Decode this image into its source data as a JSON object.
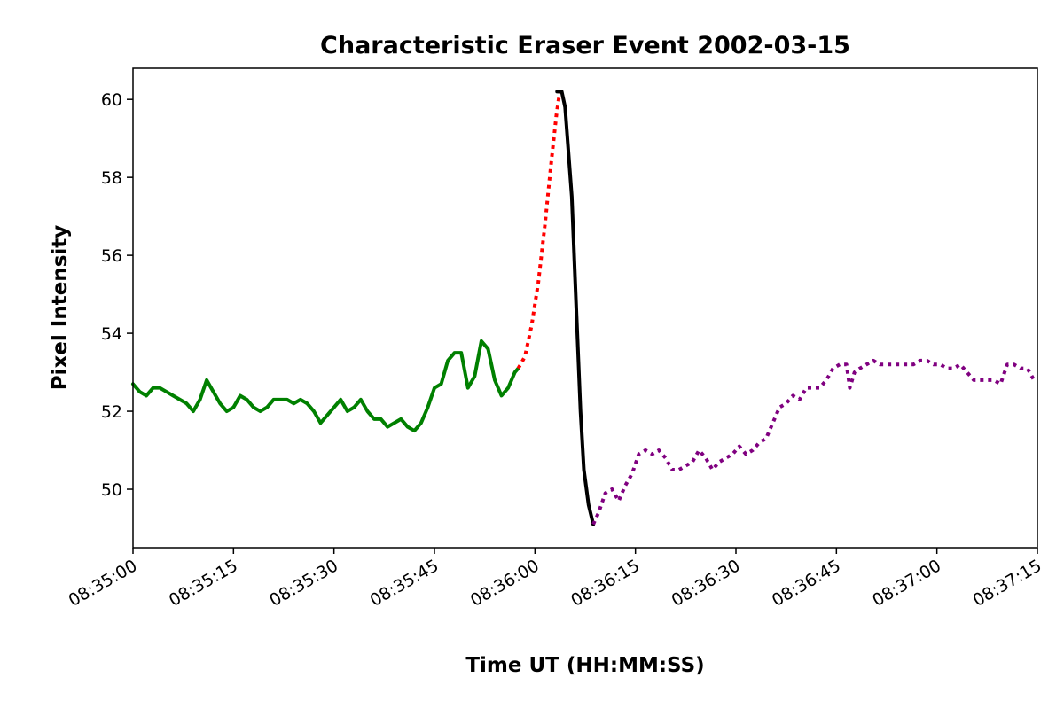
{
  "chart_data": {
    "type": "line",
    "title": "Characteristic Eraser Event 2002-03-15",
    "xlabel": "Time UT (HH:MM:SS)",
    "ylabel": "Pixel Intensity",
    "x_unit": "time of day (UT)",
    "xlim": [
      "08:35:00",
      "08:37:15"
    ],
    "ylim": [
      48.5,
      60.8
    ],
    "x_ticks": [
      "08:35:00",
      "08:35:15",
      "08:35:30",
      "08:35:45",
      "08:36:00",
      "08:36:15",
      "08:36:30",
      "08:36:45",
      "08:37:00",
      "08:37:15"
    ],
    "y_ticks": [
      50,
      52,
      54,
      56,
      58,
      60
    ],
    "grid": false,
    "series": [
      {
        "color": "#008000",
        "style": "solid",
        "points": [
          [
            "08:35:00",
            52.7
          ],
          [
            "08:35:01",
            52.5
          ],
          [
            "08:35:02",
            52.4
          ],
          [
            "08:35:03",
            52.6
          ],
          [
            "08:35:04",
            52.6
          ],
          [
            "08:35:05",
            52.5
          ],
          [
            "08:35:06",
            52.4
          ],
          [
            "08:35:07",
            52.3
          ],
          [
            "08:35:08",
            52.2
          ],
          [
            "08:35:09",
            52.0
          ],
          [
            "08:35:10",
            52.3
          ],
          [
            "08:35:11",
            52.8
          ],
          [
            "08:35:12",
            52.5
          ],
          [
            "08:35:13",
            52.2
          ],
          [
            "08:35:14",
            52.0
          ],
          [
            "08:35:15",
            52.1
          ],
          [
            "08:35:16",
            52.4
          ],
          [
            "08:35:17",
            52.3
          ],
          [
            "08:35:18",
            52.1
          ],
          [
            "08:35:19",
            52.0
          ],
          [
            "08:35:20",
            52.1
          ],
          [
            "08:35:21",
            52.3
          ],
          [
            "08:35:22",
            52.3
          ],
          [
            "08:35:23",
            52.3
          ],
          [
            "08:35:24",
            52.2
          ],
          [
            "08:35:25",
            52.3
          ],
          [
            "08:35:26",
            52.2
          ],
          [
            "08:35:27",
            52.0
          ],
          [
            "08:35:28",
            51.7
          ],
          [
            "08:35:29",
            51.9
          ],
          [
            "08:35:30",
            52.1
          ],
          [
            "08:35:31",
            52.3
          ],
          [
            "08:35:32",
            52.0
          ],
          [
            "08:35:33",
            52.1
          ],
          [
            "08:35:34",
            52.3
          ],
          [
            "08:35:35",
            52.0
          ],
          [
            "08:35:36",
            51.8
          ],
          [
            "08:35:37",
            51.8
          ],
          [
            "08:35:38",
            51.6
          ],
          [
            "08:35:39",
            51.7
          ],
          [
            "08:35:40",
            51.8
          ],
          [
            "08:35:41",
            51.6
          ],
          [
            "08:35:42",
            51.5
          ],
          [
            "08:35:43",
            51.7
          ],
          [
            "08:35:44",
            52.1
          ],
          [
            "08:35:45",
            52.6
          ],
          [
            "08:35:46",
            52.7
          ],
          [
            "08:35:47",
            53.3
          ],
          [
            "08:35:48",
            53.5
          ],
          [
            "08:35:49",
            53.5
          ],
          [
            "08:35:50",
            52.6
          ],
          [
            "08:35:51",
            52.9
          ],
          [
            "08:35:52",
            53.8
          ],
          [
            "08:35:53",
            53.6
          ],
          [
            "08:35:54",
            52.8
          ],
          [
            "08:35:55",
            52.4
          ],
          [
            "08:35:56",
            52.6
          ],
          [
            "08:35:57",
            53.0
          ],
          [
            "08:35:57.5",
            53.1
          ]
        ]
      },
      {
        "color": "#ff0000",
        "style": "dotted",
        "points": [
          [
            "08:35:57.5",
            53.1
          ],
          [
            "08:35:58.5",
            53.4
          ],
          [
            "08:35:59.5",
            54.2
          ],
          [
            "08:36:00.5",
            55.3
          ],
          [
            "08:36:01.5",
            56.8
          ],
          [
            "08:36:02.5",
            58.5
          ],
          [
            "08:36:03.2",
            59.6
          ],
          [
            "08:36:03.7",
            60.2
          ]
        ]
      },
      {
        "color": "#000000",
        "style": "solid",
        "points": [
          [
            "08:36:03.3",
            60.2
          ],
          [
            "08:36:04",
            60.2
          ],
          [
            "08:36:04.5",
            59.8
          ],
          [
            "08:36:05.5",
            57.5
          ],
          [
            "08:36:06.2",
            54.5
          ],
          [
            "08:36:06.8",
            52.0
          ],
          [
            "08:36:07.3",
            50.5
          ],
          [
            "08:36:08",
            49.6
          ],
          [
            "08:36:08.7",
            49.1
          ]
        ]
      },
      {
        "color": "#800080",
        "style": "dotted",
        "points": [
          [
            "08:36:08.7",
            49.1
          ],
          [
            "08:36:09.5",
            49.4
          ],
          [
            "08:36:10.5",
            49.9
          ],
          [
            "08:36:11.5",
            50.0
          ],
          [
            "08:36:12.5",
            49.7
          ],
          [
            "08:36:13.5",
            50.1
          ],
          [
            "08:36:14.5",
            50.4
          ],
          [
            "08:36:15.5",
            50.9
          ],
          [
            "08:36:16.5",
            51.0
          ],
          [
            "08:36:17.5",
            50.9
          ],
          [
            "08:36:18.5",
            51.0
          ],
          [
            "08:36:19.5",
            50.8
          ],
          [
            "08:36:20.5",
            50.5
          ],
          [
            "08:36:21.5",
            50.5
          ],
          [
            "08:36:22.5",
            50.6
          ],
          [
            "08:36:23.5",
            50.7
          ],
          [
            "08:36:24.5",
            51.0
          ],
          [
            "08:36:25.5",
            50.8
          ],
          [
            "08:36:26.5",
            50.5
          ],
          [
            "08:36:27.5",
            50.7
          ],
          [
            "08:36:28.5",
            50.8
          ],
          [
            "08:36:29.5",
            50.9
          ],
          [
            "08:36:30.5",
            51.1
          ],
          [
            "08:36:31.5",
            50.9
          ],
          [
            "08:36:32.5",
            51.0
          ],
          [
            "08:36:33.5",
            51.2
          ],
          [
            "08:36:34.5",
            51.3
          ],
          [
            "08:36:35.5",
            51.7
          ],
          [
            "08:36:36.5",
            52.1
          ],
          [
            "08:36:37.5",
            52.2
          ],
          [
            "08:36:38.5",
            52.4
          ],
          [
            "08:36:39.5",
            52.3
          ],
          [
            "08:36:40.5",
            52.6
          ],
          [
            "08:36:41.5",
            52.6
          ],
          [
            "08:36:42.5",
            52.6
          ],
          [
            "08:36:43.5",
            52.8
          ],
          [
            "08:36:44.5",
            53.1
          ],
          [
            "08:36:45.5",
            53.2
          ],
          [
            "08:36:46.5",
            53.2
          ],
          [
            "08:36:47",
            52.6
          ],
          [
            "08:36:47.7",
            53.0
          ],
          [
            "08:36:48.5",
            53.1
          ],
          [
            "08:36:49.5",
            53.2
          ],
          [
            "08:36:50.5",
            53.3
          ],
          [
            "08:36:51.5",
            53.2
          ],
          [
            "08:36:52.5",
            53.2
          ],
          [
            "08:36:53.5",
            53.2
          ],
          [
            "08:36:54.5",
            53.2
          ],
          [
            "08:36:55.5",
            53.2
          ],
          [
            "08:36:56.5",
            53.2
          ],
          [
            "08:36:57.5",
            53.3
          ],
          [
            "08:36:58.5",
            53.3
          ],
          [
            "08:36:59.5",
            53.2
          ],
          [
            "08:37:00.5",
            53.2
          ],
          [
            "08:37:01.5",
            53.1
          ],
          [
            "08:37:02.5",
            53.1
          ],
          [
            "08:37:03.5",
            53.2
          ],
          [
            "08:37:04.5",
            53.0
          ],
          [
            "08:37:05.5",
            52.8
          ],
          [
            "08:37:06.5",
            52.8
          ],
          [
            "08:37:07.5",
            52.8
          ],
          [
            "08:37:08.5",
            52.8
          ],
          [
            "08:37:09.5",
            52.7
          ],
          [
            "08:37:10.5",
            53.2
          ],
          [
            "08:37:11.5",
            53.2
          ],
          [
            "08:37:12.5",
            53.1
          ],
          [
            "08:37:13.5",
            53.1
          ],
          [
            "08:37:14.5",
            52.8
          ]
        ]
      }
    ]
  }
}
